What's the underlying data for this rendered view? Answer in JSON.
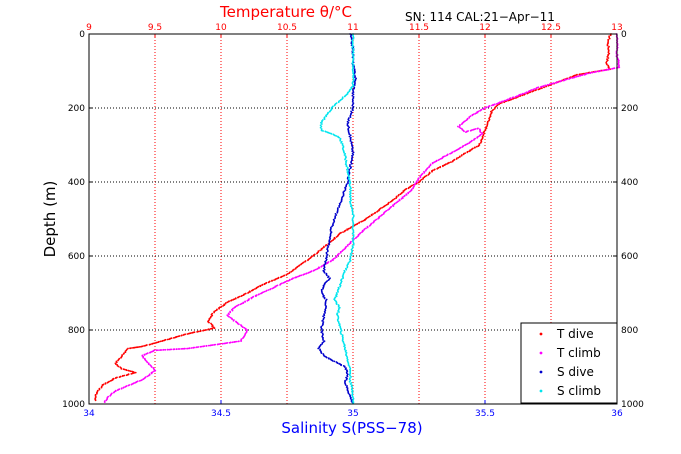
{
  "chart_data": {
    "type": "scatter",
    "title": "Temperature θ/°C",
    "subtitle": "SN: 114  CAL:21−Apr−11",
    "xlabel": "Salinity S(PSS−78)",
    "ylabel": "Depth (m)",
    "x_bottom": {
      "range": [
        34,
        36
      ],
      "ticks": [
        "34",
        "34.5",
        "35",
        "35.5",
        "36"
      ],
      "color": "#0000ff"
    },
    "x_top": {
      "range": [
        9,
        13
      ],
      "ticks": [
        "9",
        "9.5",
        "10",
        "10.5",
        "11",
        "11.5",
        "12",
        "12.5",
        "13"
      ],
      "color": "#ff0000"
    },
    "y": {
      "range": [
        0,
        1000
      ],
      "reversed": true,
      "ticks": [
        "0",
        "200",
        "400",
        "600",
        "800",
        "1000"
      ]
    },
    "grid": true,
    "legend_position": "bottom-right",
    "series": [
      {
        "name": "T dive",
        "axis": "top",
        "color": "#ff0000",
        "points": [
          [
            12.95,
            0
          ],
          [
            12.93,
            25
          ],
          [
            12.94,
            50
          ],
          [
            12.92,
            80
          ],
          [
            12.95,
            95
          ],
          [
            12.7,
            110
          ],
          [
            12.55,
            130
          ],
          [
            12.4,
            150
          ],
          [
            12.25,
            170
          ],
          [
            12.1,
            190
          ],
          [
            12.05,
            210
          ],
          [
            12.02,
            240
          ],
          [
            12.0,
            260
          ],
          [
            11.98,
            280
          ],
          [
            11.96,
            300
          ],
          [
            11.86,
            320
          ],
          [
            11.75,
            345
          ],
          [
            11.6,
            370
          ],
          [
            11.5,
            400
          ],
          [
            11.4,
            420
          ],
          [
            11.3,
            450
          ],
          [
            11.2,
            475
          ],
          [
            11.1,
            500
          ],
          [
            11.0,
            520
          ],
          [
            10.9,
            540
          ],
          [
            10.8,
            570
          ],
          [
            10.7,
            600
          ],
          [
            10.6,
            625
          ],
          [
            10.5,
            650
          ],
          [
            10.4,
            665
          ],
          [
            10.3,
            680
          ],
          [
            10.2,
            700
          ],
          [
            10.05,
            725
          ],
          [
            9.95,
            750
          ],
          [
            9.9,
            775
          ],
          [
            9.95,
            795
          ],
          [
            9.75,
            810
          ],
          [
            9.55,
            830
          ],
          [
            9.4,
            845
          ],
          [
            9.3,
            850
          ],
          [
            9.25,
            870
          ],
          [
            9.2,
            890
          ],
          [
            9.25,
            905
          ],
          [
            9.35,
            915
          ],
          [
            9.2,
            930
          ],
          [
            9.1,
            950
          ],
          [
            9.05,
            975
          ],
          [
            9.05,
            990
          ]
        ]
      },
      {
        "name": "T climb",
        "axis": "top",
        "color": "#ff00ff",
        "points": [
          [
            13.0,
            0
          ],
          [
            13.0,
            30
          ],
          [
            13.0,
            60
          ],
          [
            13.02,
            90
          ],
          [
            12.8,
            105
          ],
          [
            12.6,
            125
          ],
          [
            12.4,
            145
          ],
          [
            12.3,
            160
          ],
          [
            12.15,
            180
          ],
          [
            12.0,
            200
          ],
          [
            11.9,
            220
          ],
          [
            11.8,
            250
          ],
          [
            11.85,
            265
          ],
          [
            11.95,
            255
          ],
          [
            11.98,
            270
          ],
          [
            11.9,
            290
          ],
          [
            11.8,
            310
          ],
          [
            11.7,
            330
          ],
          [
            11.6,
            350
          ],
          [
            11.55,
            370
          ],
          [
            11.5,
            390
          ],
          [
            11.45,
            420
          ],
          [
            11.35,
            450
          ],
          [
            11.25,
            480
          ],
          [
            11.15,
            510
          ],
          [
            11.05,
            540
          ],
          [
            10.95,
            575
          ],
          [
            10.85,
            610
          ],
          [
            10.7,
            640
          ],
          [
            10.55,
            660
          ],
          [
            10.4,
            685
          ],
          [
            10.25,
            710
          ],
          [
            10.1,
            740
          ],
          [
            10.05,
            760
          ],
          [
            10.1,
            775
          ],
          [
            10.2,
            800
          ],
          [
            10.15,
            830
          ],
          [
            9.95,
            840
          ],
          [
            9.75,
            850
          ],
          [
            9.5,
            855
          ],
          [
            9.4,
            870
          ],
          [
            9.45,
            890
          ],
          [
            9.5,
            910
          ],
          [
            9.4,
            935
          ],
          [
            9.3,
            950
          ],
          [
            9.2,
            965
          ],
          [
            9.15,
            980
          ],
          [
            9.12,
            995
          ]
        ]
      },
      {
        "name": "S dive",
        "axis": "bottom",
        "color": "#0000cc",
        "points": [
          [
            34.99,
            0
          ],
          [
            35.0,
            40
          ],
          [
            35.0,
            80
          ],
          [
            35.01,
            120
          ],
          [
            35.0,
            160
          ],
          [
            35.0,
            200
          ],
          [
            34.98,
            240
          ],
          [
            34.99,
            280
          ],
          [
            35.0,
            320
          ],
          [
            34.99,
            360
          ],
          [
            34.98,
            400
          ],
          [
            34.96,
            440
          ],
          [
            34.94,
            480
          ],
          [
            34.92,
            520
          ],
          [
            34.91,
            560
          ],
          [
            34.9,
            600
          ],
          [
            34.89,
            640
          ],
          [
            34.91,
            660
          ],
          [
            34.89,
            680
          ],
          [
            34.88,
            700
          ],
          [
            34.9,
            720
          ],
          [
            34.89,
            760
          ],
          [
            34.88,
            800
          ],
          [
            34.89,
            830
          ],
          [
            34.87,
            850
          ],
          [
            34.89,
            870
          ],
          [
            34.93,
            885
          ],
          [
            34.97,
            900
          ],
          [
            34.98,
            920
          ],
          [
            34.97,
            940
          ],
          [
            34.98,
            960
          ],
          [
            34.99,
            980
          ],
          [
            35.0,
            998
          ]
        ]
      },
      {
        "name": "S climb",
        "axis": "bottom",
        "color": "#00e5ee",
        "points": [
          [
            35.0,
            0
          ],
          [
            35.0,
            50
          ],
          [
            35.0,
            100
          ],
          [
            35.0,
            140
          ],
          [
            34.98,
            160
          ],
          [
            34.95,
            180
          ],
          [
            34.92,
            200
          ],
          [
            34.9,
            220
          ],
          [
            34.88,
            240
          ],
          [
            34.88,
            260
          ],
          [
            34.92,
            270
          ],
          [
            34.95,
            280
          ],
          [
            34.96,
            300
          ],
          [
            34.97,
            330
          ],
          [
            34.98,
            370
          ],
          [
            34.99,
            410
          ],
          [
            34.99,
            450
          ],
          [
            35.0,
            490
          ],
          [
            35.0,
            530
          ],
          [
            35.0,
            570
          ],
          [
            34.99,
            610
          ],
          [
            34.97,
            640
          ],
          [
            34.96,
            660
          ],
          [
            34.95,
            680
          ],
          [
            34.94,
            700
          ],
          [
            34.93,
            720
          ],
          [
            34.95,
            740
          ],
          [
            34.94,
            760
          ],
          [
            34.95,
            790
          ],
          [
            34.96,
            820
          ],
          [
            34.97,
            850
          ],
          [
            34.98,
            880
          ],
          [
            34.99,
            910
          ],
          [
            34.99,
            940
          ],
          [
            35.0,
            970
          ],
          [
            35.0,
            998
          ]
        ]
      }
    ]
  }
}
